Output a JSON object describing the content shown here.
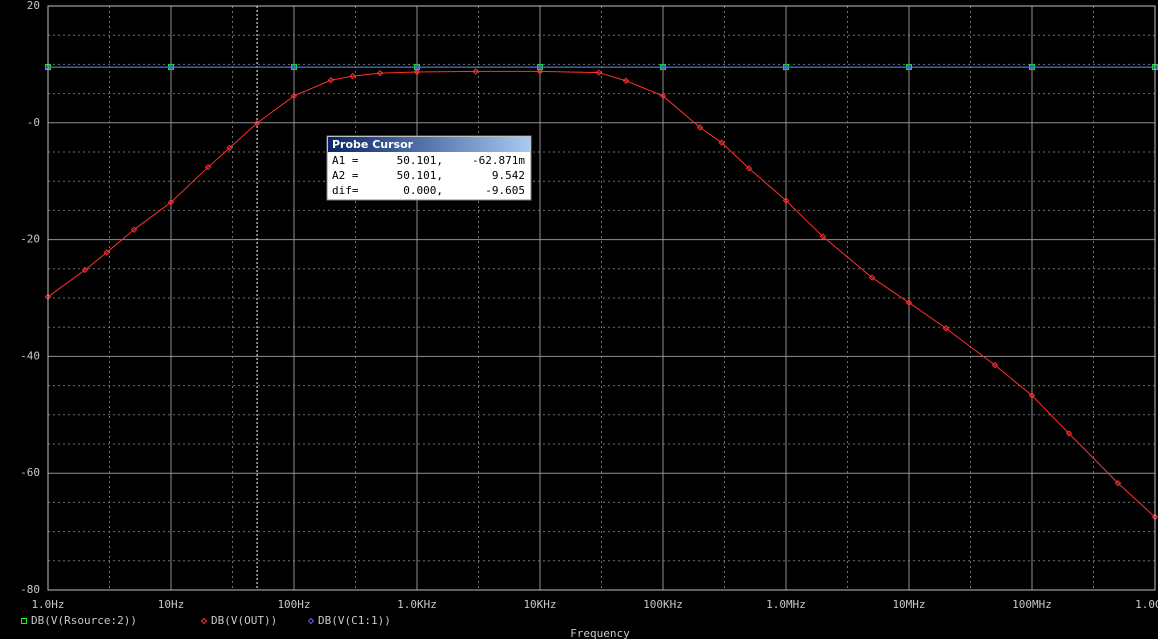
{
  "chart_data": {
    "type": "line",
    "x_label": "Frequency",
    "log_x": true,
    "grid": true,
    "xlim": [
      1,
      1000000000
    ],
    "ylim": [
      -80,
      20
    ],
    "xticks": [
      {
        "value": 1,
        "label": "1.0Hz"
      },
      {
        "value": 10,
        "label": "10Hz"
      },
      {
        "value": 100,
        "label": "100Hz"
      },
      {
        "value": 1000,
        "label": "1.0KHz"
      },
      {
        "value": 10000,
        "label": "10KHz"
      },
      {
        "value": 100000,
        "label": "100KHz"
      },
      {
        "value": 1000000,
        "label": "1.0MHz"
      },
      {
        "value": 10000000,
        "label": "10MHz"
      },
      {
        "value": 100000000,
        "label": "100MHz"
      },
      {
        "value": 1000000000,
        "label": "1.0GHz"
      }
    ],
    "yticks": [
      20,
      {
        "value": 0,
        "label": "-0"
      },
      -20,
      -40,
      -60,
      -80
    ],
    "cursor_x": 50.101,
    "series": [
      {
        "name": "DB(V(Rsource:2))",
        "color": "#00ff00",
        "marker": "square",
        "x": [
          1,
          10,
          100,
          1000,
          10000,
          100000,
          1000000,
          10000000,
          100000000,
          1000000000
        ],
        "values": [
          9.542,
          9.542,
          9.542,
          9.542,
          9.542,
          9.542,
          9.542,
          9.542,
          9.542,
          9.542
        ]
      },
      {
        "name": "DB(V(OUT))",
        "color": "#ff3030",
        "marker": "diamond",
        "x": [
          1,
          2,
          3,
          5,
          10,
          20,
          30,
          50,
          100,
          200,
          300,
          500,
          1000,
          3000,
          10000,
          30000,
          50000,
          100000,
          200000,
          300000,
          500000,
          1000000,
          2000000,
          5000000,
          10000000,
          20000000,
          50000000,
          100000000,
          200000000,
          500000000,
          1000000000
        ],
        "values": [
          -29.8,
          -25.2,
          -22.2,
          -18.3,
          -13.6,
          -7.6,
          -4.3,
          -0.06,
          4.6,
          7.3,
          8.0,
          8.5,
          8.7,
          8.8,
          8.8,
          8.6,
          7.2,
          4.6,
          -0.8,
          -3.4,
          -7.8,
          -13.3,
          -19.5,
          -26.5,
          -30.8,
          -35.2,
          -41.5,
          -46.7,
          -53.2,
          -61.7,
          -67.5
        ]
      },
      {
        "name": "DB(V(C1:1))",
        "color": "#6060ff",
        "marker": "diamond",
        "x": [
          1,
          10,
          100,
          1000,
          10000,
          100000,
          1000000,
          10000000,
          100000000,
          1000000000
        ],
        "values": [
          9.542,
          9.542,
          9.542,
          9.542,
          9.542,
          9.542,
          9.542,
          9.542,
          9.542,
          9.542
        ]
      }
    ],
    "cursor_box": {
      "title": "Probe Cursor",
      "rows": [
        [
          "A1 =",
          "50.101,",
          "-62.871m"
        ],
        [
          "A2 =",
          "50.101,",
          "9.542"
        ],
        [
          "dif=",
          "0.000,",
          "-9.605"
        ]
      ]
    }
  }
}
